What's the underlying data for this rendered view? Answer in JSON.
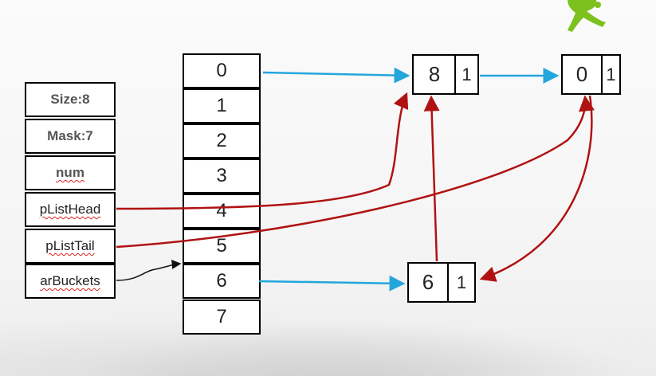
{
  "hash_header": {
    "fields": [
      "Size:8",
      "Mask:7",
      "num",
      "pListHead",
      "pListTail",
      "arBuckets"
    ]
  },
  "buckets": [
    "0",
    "1",
    "2",
    "3",
    "4",
    "5",
    "6",
    "7"
  ],
  "nodes": {
    "node_a": {
      "key": "8",
      "val": "1"
    },
    "node_b": {
      "key": "0",
      "val": "1"
    },
    "node_c": {
      "key": "6",
      "val": "1"
    }
  },
  "colors": {
    "next_arrow": "#23a6dc",
    "list_arrow": "#b01212",
    "pointer_arrow": "#111111",
    "logo": "#7dc11f"
  }
}
